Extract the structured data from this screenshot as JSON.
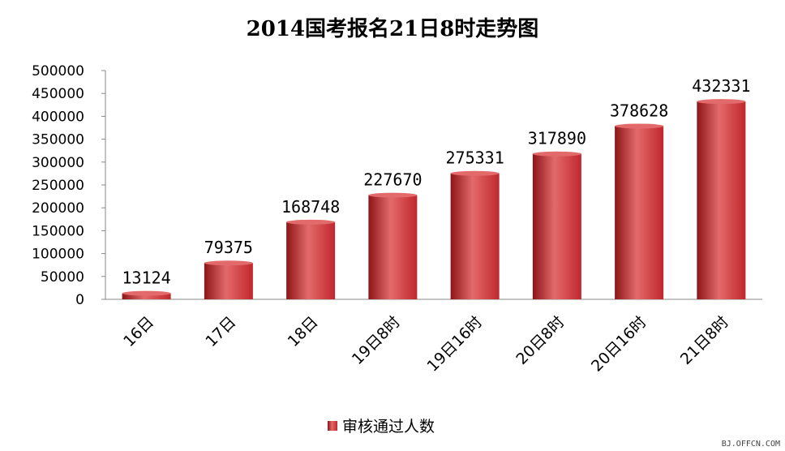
{
  "chart_data": {
    "type": "bar",
    "title": "2014国考报名21日8时走势图",
    "categories": [
      "16日",
      "17日",
      "18日",
      "19日8时",
      "19日16时",
      "20日8时",
      "20日16时",
      "21日8时"
    ],
    "series": [
      {
        "name": "审核通过人数",
        "values": [
          13124,
          79375,
          168748,
          227670,
          275331,
          317890,
          378628,
          432331
        ]
      }
    ],
    "data_labels": [
      "13124",
      "79375",
      "168748",
      "227670",
      "275331",
      "317890",
      "378628",
      "432331"
    ],
    "y_ticks": [
      "0",
      "50000",
      "100000",
      "150000",
      "200000",
      "250000",
      "300000",
      "350000",
      "400000",
      "450000",
      "500000"
    ],
    "ylim": [
      0,
      500000
    ],
    "xlabel": "",
    "ylabel": "",
    "grid": false,
    "legend": "bottom",
    "bar_color": "#c0272d",
    "bar_color_light": "#e36a6a",
    "bar_color_dark": "#8c1518"
  },
  "watermark": "BJ.OFFCN.COM"
}
